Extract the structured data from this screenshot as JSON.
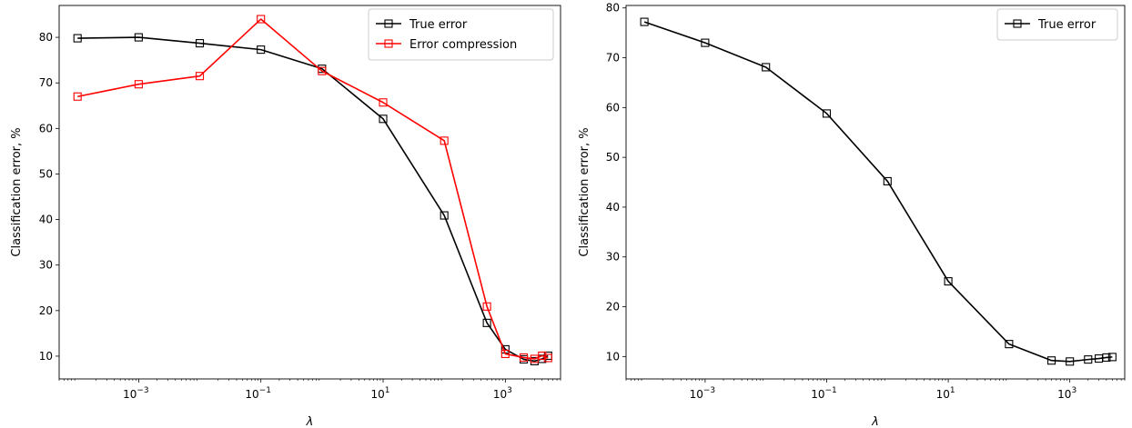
{
  "chart_data": [
    {
      "type": "line",
      "title": "",
      "xlabel": "λ",
      "ylabel": "Classification error, %",
      "xscale": "log",
      "xlim": [
        5e-05,
        8000
      ],
      "ylim": [
        5,
        87
      ],
      "xticks": [
        0.001,
        0.1,
        10,
        1000
      ],
      "xtick_labels": [
        {
          "base": "10",
          "exp": "−3"
        },
        {
          "base": "10",
          "exp": "−1"
        },
        {
          "base": "10",
          "exp": "1"
        },
        {
          "base": "10",
          "exp": "3"
        }
      ],
      "yticks": [
        10,
        20,
        30,
        40,
        50,
        60,
        70,
        80
      ],
      "grid": false,
      "legend_position": "top-right",
      "series": [
        {
          "name": "True error",
          "color": "#000000",
          "marker": "square",
          "x": [
            0.0001,
            0.001,
            0.01,
            0.1,
            1,
            10,
            100,
            500,
            1000,
            2000,
            3000,
            4000,
            5000
          ],
          "y": [
            79.8,
            80.0,
            78.7,
            77.3,
            73.1,
            62.1,
            40.9,
            17.3,
            11.5,
            9.3,
            8.9,
            9.4,
            10.1
          ]
        },
        {
          "name": "Error compression",
          "color": "#ff0000",
          "marker": "square",
          "x": [
            0.0001,
            0.001,
            0.01,
            0.1,
            1,
            10,
            100,
            500,
            1000,
            2000,
            3000,
            4000,
            5000
          ],
          "y": [
            67.0,
            69.7,
            71.5,
            84.0,
            72.6,
            65.7,
            57.3,
            20.9,
            10.5,
            9.7,
            9.4,
            10.1,
            9.6
          ]
        }
      ]
    },
    {
      "type": "line",
      "title": "",
      "xlabel": "λ",
      "ylabel": "Classification error, %",
      "xscale": "log",
      "xlim": [
        5e-05,
        8000
      ],
      "ylim": [
        5.5,
        80.5
      ],
      "xticks": [
        0.001,
        0.1,
        10,
        1000
      ],
      "xtick_labels": [
        {
          "base": "10",
          "exp": "−3"
        },
        {
          "base": "10",
          "exp": "−1"
        },
        {
          "base": "10",
          "exp": "1"
        },
        {
          "base": "10",
          "exp": "3"
        }
      ],
      "yticks": [
        10,
        20,
        30,
        40,
        50,
        60,
        70,
        80
      ],
      "grid": false,
      "legend_position": "top-right",
      "series": [
        {
          "name": "True error",
          "color": "#000000",
          "marker": "square",
          "x": [
            0.0001,
            0.001,
            0.01,
            0.1,
            1,
            10,
            100,
            500,
            1000,
            2000,
            3000,
            4000,
            5000
          ],
          "y": [
            77.2,
            73.0,
            68.1,
            58.8,
            45.2,
            25.1,
            12.5,
            9.2,
            9.0,
            9.4,
            9.6,
            9.8,
            9.9
          ]
        }
      ]
    }
  ]
}
